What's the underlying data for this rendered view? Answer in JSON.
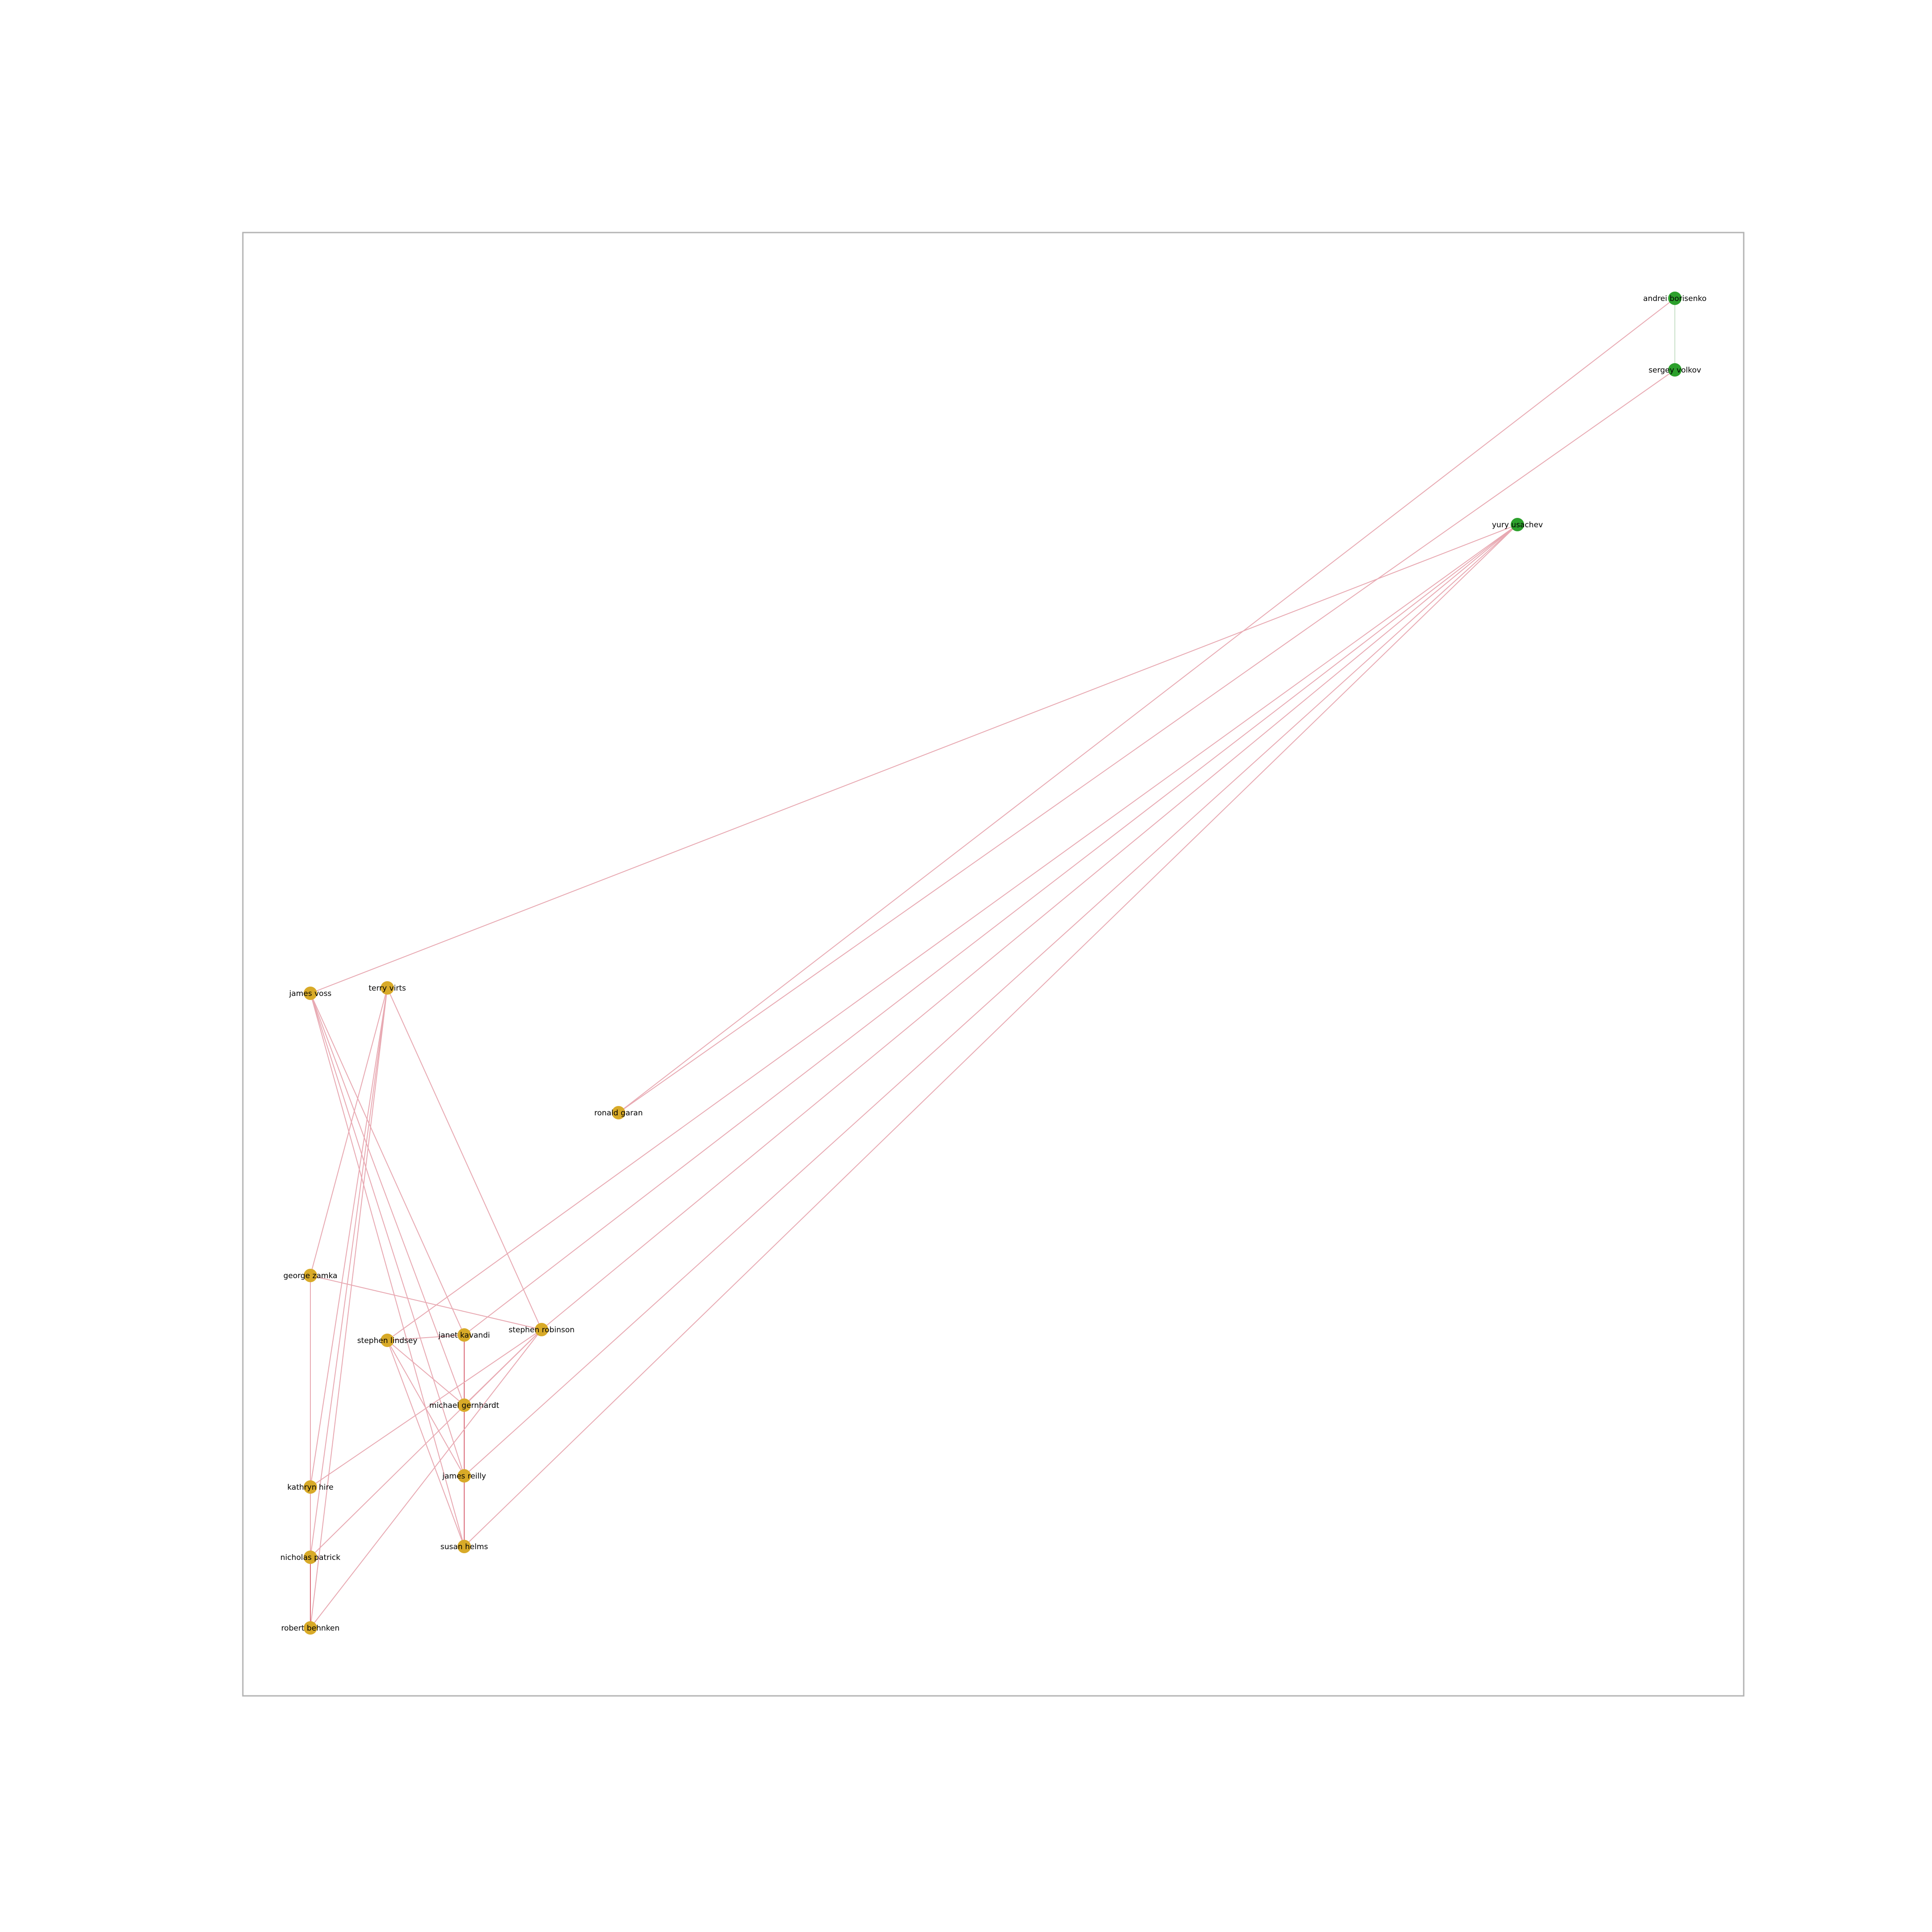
{
  "colors": {
    "frame": "#b3b3b3",
    "edge": "#e8a9b2",
    "edge_strong": "#d96a78",
    "edge_green": "#c8e0c8",
    "group_gold": "#d8aa28",
    "group_green": "#2ca02c"
  },
  "nodes": [
    {
      "id": "andrei",
      "label": "andrei borisenko",
      "group": "green"
    },
    {
      "id": "sergey",
      "label": "sergey volkov",
      "group": "green"
    },
    {
      "id": "yury",
      "label": "yury usachev",
      "group": "green"
    },
    {
      "id": "james_voss",
      "label": "james voss",
      "group": "gold"
    },
    {
      "id": "terry",
      "label": "terry virts",
      "group": "gold"
    },
    {
      "id": "ronald",
      "label": "ronald garan",
      "group": "gold"
    },
    {
      "id": "george",
      "label": "george zamka",
      "group": "gold"
    },
    {
      "id": "lindsey",
      "label": "stephen lindsey",
      "group": "gold"
    },
    {
      "id": "kavandi",
      "label": "janet kavandi",
      "group": "gold"
    },
    {
      "id": "robinson",
      "label": "stephen robinson",
      "group": "gold"
    },
    {
      "id": "gernhardt",
      "label": "michael gernhardt",
      "group": "gold"
    },
    {
      "id": "kathryn",
      "label": "kathryn hire",
      "group": "gold"
    },
    {
      "id": "reilly",
      "label": "james reilly",
      "group": "gold"
    },
    {
      "id": "nicholas",
      "label": "nicholas patrick",
      "group": "gold"
    },
    {
      "id": "helms",
      "label": "susan helms",
      "group": "gold"
    },
    {
      "id": "behnken",
      "label": "robert behnken",
      "group": "gold"
    }
  ],
  "edges": [
    {
      "source": "andrei",
      "target": "sergey",
      "style": "green"
    },
    {
      "source": "andrei",
      "target": "ronald"
    },
    {
      "source": "sergey",
      "target": "ronald"
    },
    {
      "source": "yury",
      "target": "james_voss"
    },
    {
      "source": "yury",
      "target": "lindsey"
    },
    {
      "source": "yury",
      "target": "kavandi"
    },
    {
      "source": "yury",
      "target": "robinson"
    },
    {
      "source": "yury",
      "target": "reilly"
    },
    {
      "source": "yury",
      "target": "helms"
    },
    {
      "source": "james_voss",
      "target": "kavandi"
    },
    {
      "source": "james_voss",
      "target": "gernhardt"
    },
    {
      "source": "james_voss",
      "target": "reilly"
    },
    {
      "source": "james_voss",
      "target": "helms"
    },
    {
      "source": "terry",
      "target": "george"
    },
    {
      "source": "terry",
      "target": "kathryn"
    },
    {
      "source": "terry",
      "target": "nicholas"
    },
    {
      "source": "terry",
      "target": "behnken"
    },
    {
      "source": "terry",
      "target": "robinson"
    },
    {
      "source": "george",
      "target": "kathryn",
      "style": "strong"
    },
    {
      "source": "george",
      "target": "robinson"
    },
    {
      "source": "kathryn",
      "target": "nicholas",
      "style": "strong"
    },
    {
      "source": "nicholas",
      "target": "behnken",
      "style": "strong"
    },
    {
      "source": "george",
      "target": "nicholas"
    },
    {
      "source": "kavandi",
      "target": "gernhardt",
      "style": "strong"
    },
    {
      "source": "gernhardt",
      "target": "reilly",
      "style": "strong"
    },
    {
      "source": "reilly",
      "target": "helms",
      "style": "strong"
    },
    {
      "source": "lindsey",
      "target": "kavandi"
    },
    {
      "source": "lindsey",
      "target": "gernhardt"
    },
    {
      "source": "lindsey",
      "target": "reilly"
    },
    {
      "source": "lindsey",
      "target": "helms"
    },
    {
      "source": "robinson",
      "target": "gernhardt"
    },
    {
      "source": "robinson",
      "target": "kathryn"
    },
    {
      "source": "robinson",
      "target": "nicholas"
    },
    {
      "source": "robinson",
      "target": "behnken"
    }
  ]
}
